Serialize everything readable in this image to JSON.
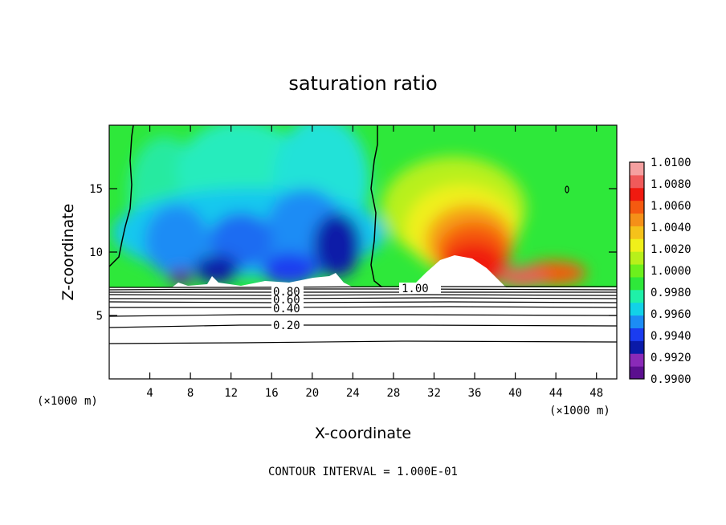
{
  "chart_data": {
    "type": "heatmap",
    "title": "saturation ratio",
    "xlabel": "X-coordinate",
    "ylabel": "Z-coordinate",
    "x_unit_note": "(×1000 m)",
    "footer": "CONTOUR INTERVAL = 1.000E-01",
    "xlim": [
      0,
      50
    ],
    "ylim": [
      0,
      20
    ],
    "x_ticks": [
      4,
      8,
      12,
      16,
      20,
      24,
      28,
      32,
      36,
      40,
      44,
      48
    ],
    "y_ticks": [
      5,
      10,
      15
    ],
    "colorbar": {
      "min": 0.99,
      "max": 1.01,
      "labels": [
        "1.0100",
        "1.0080",
        "1.0060",
        "1.0040",
        "1.0020",
        "1.0000",
        "0.9980",
        "0.9960",
        "0.9940",
        "0.9920",
        "0.9900"
      ],
      "colors": [
        "#5b0f8f",
        "#8a2ab8",
        "#0a1aa8",
        "#1a3cf0",
        "#1c8cf5",
        "#12d2e8",
        "#1ff0a8",
        "#2ee83a",
        "#6cf01c",
        "#b8f01a",
        "#f0f01a",
        "#f5c21a",
        "#f59018",
        "#f55a10",
        "#f01a10",
        "#f05a5a",
        "#f5a0a0"
      ]
    },
    "contour_labels": [
      "0.20",
      "0.40",
      "0.60",
      "0.80",
      "1.00"
    ]
  }
}
